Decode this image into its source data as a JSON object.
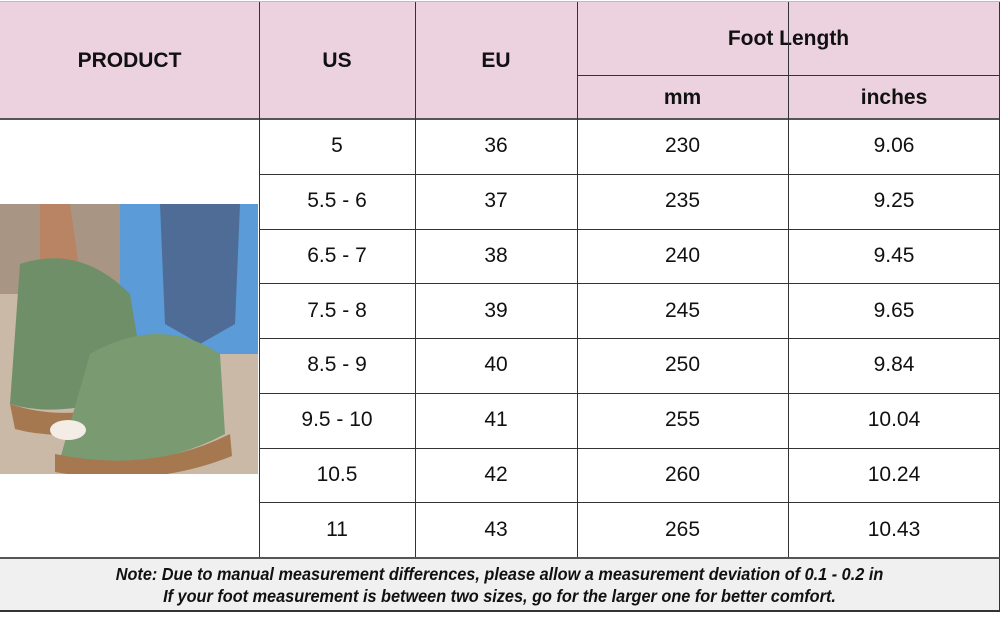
{
  "header": {
    "product": "PRODUCT",
    "us": "US",
    "eu": "EU",
    "foot_length": "Foot Length",
    "mm": "mm",
    "inches": "inches"
  },
  "header_color": "#ecd1de",
  "rows": [
    {
      "us": "5",
      "eu": "36",
      "mm": "230",
      "inches": "9.06"
    },
    {
      "us": "5.5 - 6",
      "eu": "37",
      "mm": "235",
      "inches": "9.25"
    },
    {
      "us": "6.5 - 7",
      "eu": "38",
      "mm": "240",
      "inches": "9.45"
    },
    {
      "us": "7.5 - 8",
      "eu": "39",
      "mm": "245",
      "inches": "9.65"
    },
    {
      "us": "8.5 - 9",
      "eu": "40",
      "mm": "250",
      "inches": "9.84"
    },
    {
      "us": "9.5 - 10",
      "eu": "41",
      "mm": "255",
      "inches": "10.04"
    },
    {
      "us": "10.5",
      "eu": "42",
      "mm": "260",
      "inches": "10.24"
    },
    {
      "us": "11",
      "eu": "43",
      "mm": "265",
      "inches": "10.43"
    }
  ],
  "note": {
    "line1": "Note: Due to manual measurement differences, please allow a measurement deviation of 0.1 - 0.2 in",
    "line2": "If your foot measurement is between two sizes, go for the larger one for better comfort."
  },
  "product_image": "green-wedge-sandal-photo"
}
